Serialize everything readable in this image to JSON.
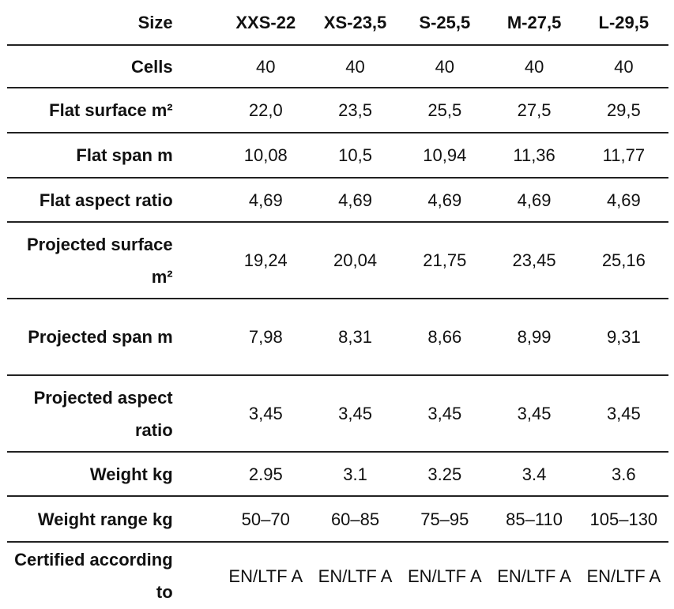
{
  "header": {
    "label": "Size",
    "sizes": [
      "XXS-22",
      "XS-23,5",
      "S-25,5",
      "M-27,5",
      "L-29,5"
    ]
  },
  "rows": [
    {
      "label": "Cells",
      "values": [
        "40",
        "40",
        "40",
        "40",
        "40"
      ]
    },
    {
      "label": "Flat surface m²",
      "values": [
        "22,0",
        "23,5",
        "25,5",
        "27,5",
        "29,5"
      ]
    },
    {
      "label": "Flat span m",
      "values": [
        "10,08",
        "10,5",
        "10,94",
        "11,36",
        "11,77"
      ]
    },
    {
      "label": "Flat aspect ratio",
      "values": [
        "4,69",
        "4,69",
        "4,69",
        "4,69",
        "4,69"
      ]
    },
    {
      "label": "Projected surface m²",
      "values": [
        "19,24",
        "20,04",
        "21,75",
        "23,45",
        "25,16"
      ]
    },
    {
      "label": "Projected span m",
      "values": [
        "7,98",
        "8,31",
        "8,66",
        "8,99",
        "9,31"
      ]
    },
    {
      "label": "Projected aspect ratio",
      "values": [
        "3,45",
        "3,45",
        "3,45",
        "3,45",
        "3,45"
      ]
    },
    {
      "label": "Weight kg",
      "values": [
        "2.95",
        "3.1",
        "3.25",
        "3.4",
        "3.6"
      ]
    },
    {
      "label": "Weight range kg",
      "values": [
        "50–70",
        "60–85",
        "75–95",
        "85–110",
        "105–130"
      ]
    },
    {
      "label": "Certified according to",
      "values": [
        "EN/LTF A",
        "EN/LTF A",
        "EN/LTF A",
        "EN/LTF A",
        "EN/LTF A"
      ]
    }
  ]
}
